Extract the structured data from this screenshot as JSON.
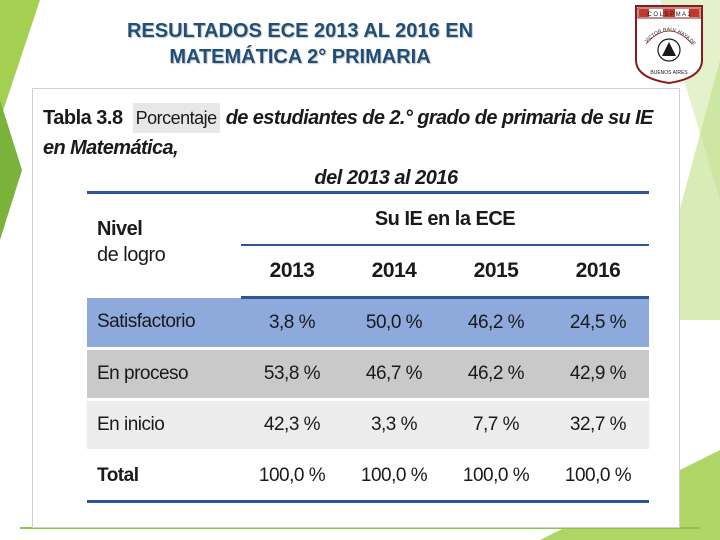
{
  "slide": {
    "title_line1": "RESULTADOS ECE 2013 AL 2016 EN",
    "title_line2": "MATEMÁTICA 2° PRIMARIA"
  },
  "logo": {
    "top_text": "C O L  S P M  A 1",
    "arc_text": "VICTOR RAUL HAYA DE LA TORRE",
    "bottom_text": "BUENOS AIRES"
  },
  "caption": {
    "label": "Tabla 3.8",
    "highlight": "Porcentaje",
    "rest": "de estudiantes de 2.° grado de primaria de su IE en Matemática,",
    "line2": "del 2013 al 2016"
  },
  "table": {
    "nivel_header": "Nivel",
    "nivel_header_sub": "de logro",
    "group_header": "Su IE en la ECE",
    "years": [
      "2013",
      "2014",
      "2015",
      "2016"
    ],
    "rows": [
      {
        "label": "Satisfactorio",
        "values": [
          "3,8 %",
          "50,0 %",
          "46,2 %",
          "24,5 %"
        ]
      },
      {
        "label": "En proceso",
        "values": [
          "53,8 %",
          "46,7 %",
          "46,2 %",
          "42,9 %"
        ]
      },
      {
        "label": "En inicio",
        "values": [
          "42,3 %",
          "3,3 %",
          "7,7 %",
          "32,7 %"
        ]
      },
      {
        "label": "Total",
        "values": [
          "100,0 %",
          "100,0 %",
          "100,0 %",
          "100,0 %"
        ]
      }
    ]
  },
  "colors": {
    "title": "#1f4e79",
    "theme_green": "#8dc63f",
    "row_satisfactorio": "#8ea9db",
    "row_en_proceso": "#c9c9c9",
    "row_en_inicio": "#ececec",
    "table_rule": "#2f5597"
  }
}
